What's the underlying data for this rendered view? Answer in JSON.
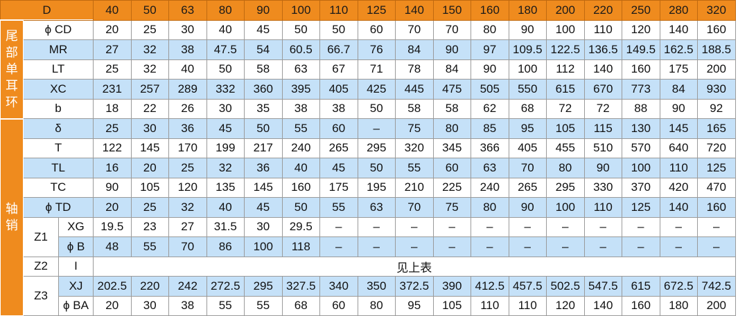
{
  "header": {
    "label": "D",
    "values": [
      "40",
      "50",
      "63",
      "80",
      "90",
      "100",
      "110",
      "125",
      "140",
      "150",
      "160",
      "180",
      "200",
      "220",
      "250",
      "280",
      "320"
    ]
  },
  "sections": [
    {
      "title": "尾部单耳环",
      "rows": [
        {
          "label": "ϕ CD",
          "values": [
            "20",
            "25",
            "30",
            "40",
            "45",
            "50",
            "50",
            "60",
            "70",
            "70",
            "80",
            "90",
            "100",
            "110",
            "120",
            "140",
            "160"
          ]
        },
        {
          "label": "MR",
          "values": [
            "27",
            "32",
            "38",
            "47.5",
            "54",
            "60.5",
            "66.7",
            "76",
            "84",
            "90",
            "97",
            "109.5",
            "122.5",
            "136.5",
            "149.5",
            "162.5",
            "188.5"
          ]
        },
        {
          "label": "LT",
          "values": [
            "25",
            "32",
            "40",
            "50",
            "58",
            "63",
            "67",
            "71",
            "78",
            "84",
            "90",
            "100",
            "112",
            "140",
            "160",
            "175",
            "200"
          ]
        },
        {
          "label": "XC",
          "values": [
            "231",
            "257",
            "289",
            "332",
            "360",
            "395",
            "405",
            "425",
            "445",
            "475",
            "505",
            "550",
            "615",
            "670",
            "773",
            "84",
            "930"
          ]
        },
        {
          "label": "b",
          "values": [
            "18",
            "22",
            "26",
            "30",
            "35",
            "38",
            "38",
            "50",
            "58",
            "58",
            "62",
            "68",
            "72",
            "72",
            "88",
            "90",
            "92"
          ]
        }
      ]
    },
    {
      "title": "轴销",
      "rows": [
        {
          "label": "δ",
          "values": [
            "25",
            "30",
            "36",
            "45",
            "50",
            "55",
            "60",
            "–",
            "75",
            "80",
            "85",
            "95",
            "105",
            "115",
            "130",
            "145",
            "165"
          ]
        },
        {
          "label": "T",
          "values": [
            "122",
            "145",
            "170",
            "199",
            "217",
            "240",
            "265",
            "295",
            "320",
            "345",
            "366",
            "405",
            "455",
            "510",
            "570",
            "640",
            "720"
          ]
        },
        {
          "label": "TL",
          "values": [
            "16",
            "20",
            "25",
            "32",
            "36",
            "40",
            "45",
            "50",
            "55",
            "60",
            "63",
            "70",
            "80",
            "90",
            "100",
            "110",
            "125"
          ]
        },
        {
          "label": "TC",
          "values": [
            "90",
            "105",
            "120",
            "135",
            "145",
            "160",
            "175",
            "195",
            "210",
            "225",
            "240",
            "265",
            "295",
            "330",
            "370",
            "420",
            "470"
          ]
        },
        {
          "label": "ϕ TD",
          "values": [
            "20",
            "25",
            "32",
            "40",
            "45",
            "50",
            "55",
            "63",
            "70",
            "75",
            "80",
            "90",
            "100",
            "110",
            "125",
            "140",
            "160"
          ]
        }
      ],
      "groups": [
        {
          "label": "Z1",
          "rows": [
            {
              "label": "XG",
              "values": [
                "19.5",
                "23",
                "27",
                "31.5",
                "30",
                "29.5",
                "–",
                "–",
                "–",
                "–",
                "–",
                "–",
                "–",
                "–",
                "–",
                "–",
                "–"
              ]
            },
            {
              "label": "ϕ B",
              "values": [
                "48",
                "55",
                "70",
                "86",
                "100",
                "118",
                "–",
                "–",
                "–",
                "–",
                "–",
                "–",
                "–",
                "–",
                "–",
                "–",
                "–"
              ]
            }
          ]
        },
        {
          "label": "Z2",
          "rows": [
            {
              "label": "I",
              "note": "见上表"
            }
          ]
        },
        {
          "label": "Z3",
          "rows": [
            {
              "label": "XJ",
              "values": [
                "202.5",
                "220",
                "242",
                "272.5",
                "295",
                "327.5",
                "340",
                "350",
                "372.5",
                "390",
                "412.5",
                "457.5",
                "502.5",
                "547.5",
                "615",
                "672.5",
                "742.5"
              ]
            },
            {
              "label": "ϕ BA",
              "values": [
                "20",
                "30",
                "38",
                "55",
                "55",
                "68",
                "60",
                "80",
                "95",
                "105",
                "110",
                "110",
                "120",
                "140",
                "160",
                "180",
                "200"
              ]
            }
          ]
        }
      ]
    }
  ],
  "colors": {
    "header_orange": "#ef8b1e",
    "row_blue": "#c5e1f8",
    "row_white": "#ffffff"
  }
}
